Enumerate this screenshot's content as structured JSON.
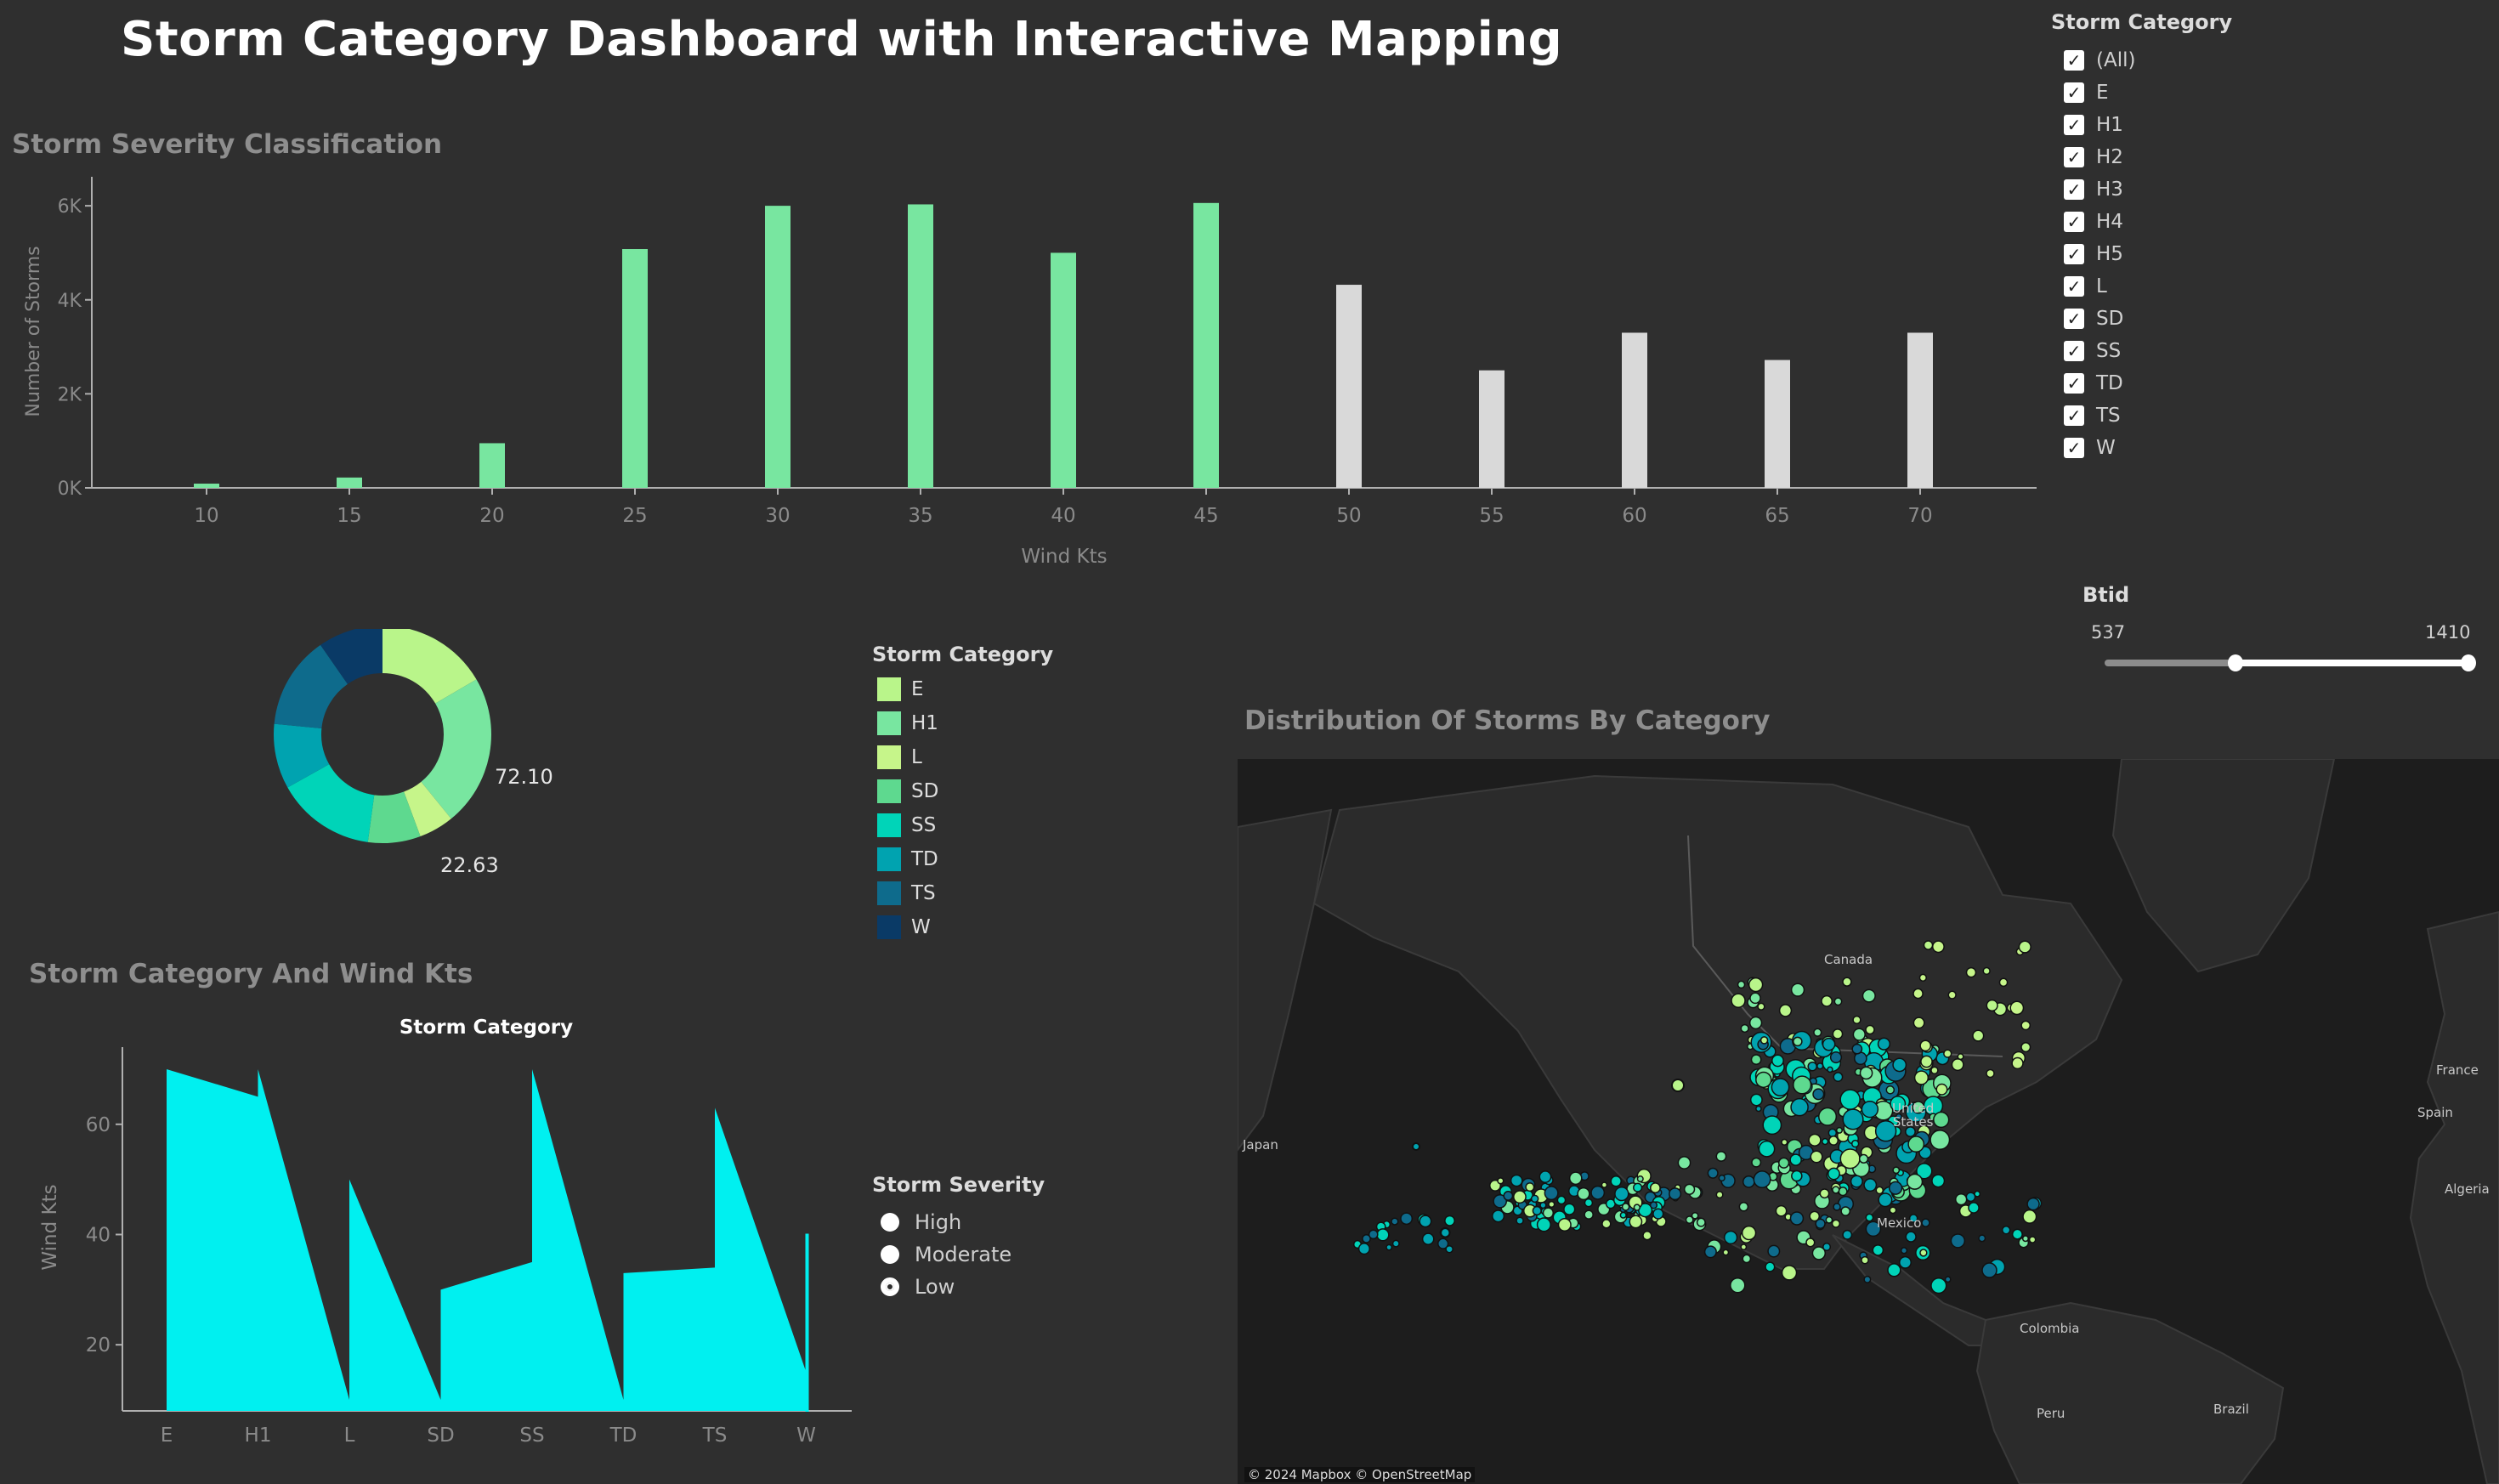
{
  "dashboard": {
    "title": "Storm Category Dashboard with Interactive Mapping"
  },
  "colors": {
    "background": "#2f2f2f",
    "bar_highlight": "#78e6a0",
    "bar_muted": "#d9d9d9",
    "area_fill": "#00f0f0",
    "map_bg": "#1d1d1d",
    "map_land": "#2b2b2b"
  },
  "severity_chart": {
    "section_title": "Storm Severity Classification",
    "chart_data": {
      "type": "bar",
      "categories": [
        "10",
        "15",
        "20",
        "25",
        "30",
        "35",
        "40",
        "45",
        "50",
        "55",
        "60",
        "65",
        "70"
      ],
      "values": [
        90,
        220,
        950,
        5080,
        6000,
        6030,
        5000,
        6060,
        4320,
        2500,
        3300,
        2720,
        3300
      ],
      "highlighted": [
        true,
        true,
        true,
        true,
        true,
        true,
        true,
        true,
        false,
        false,
        false,
        false,
        false
      ],
      "xlabel": "Wind Kts",
      "ylabel": "Number of Storms",
      "ylim": [
        0,
        6400
      ],
      "yticks": [
        0,
        2000,
        4000,
        6000
      ],
      "ytick_labels": [
        "0K",
        "2K",
        "4K",
        "6K"
      ]
    }
  },
  "filters": {
    "storm_category": {
      "title": "Storm Category",
      "items": [
        {
          "label": "(All)",
          "checked": true
        },
        {
          "label": "E",
          "checked": true
        },
        {
          "label": "H1",
          "checked": true
        },
        {
          "label": "H2",
          "checked": true
        },
        {
          "label": "H3",
          "checked": true
        },
        {
          "label": "H4",
          "checked": true
        },
        {
          "label": "H5",
          "checked": true
        },
        {
          "label": "L",
          "checked": true
        },
        {
          "label": "SD",
          "checked": true
        },
        {
          "label": "SS",
          "checked": true
        },
        {
          "label": "TD",
          "checked": true
        },
        {
          "label": "TS",
          "checked": true
        },
        {
          "label": "W",
          "checked": true
        }
      ]
    },
    "btid": {
      "title": "Btid",
      "min_label": "537",
      "max_label": "1410",
      "range_start": 0.36,
      "range_end": 1.0
    }
  },
  "donut": {
    "chart_data": {
      "type": "pie",
      "slices": [
        {
          "label": "E",
          "value": 72.1,
          "color": "#b9f58a"
        },
        {
          "label": "H1",
          "value": 98,
          "color": "#78e6a0"
        },
        {
          "label": "L",
          "value": 22.63,
          "color": "#c6f58a"
        },
        {
          "label": "SD",
          "value": 34,
          "color": "#5ed98f"
        },
        {
          "label": "SS",
          "value": 64,
          "color": "#00d4b8"
        },
        {
          "label": "TD",
          "value": 42,
          "color": "#00a3b0"
        },
        {
          "label": "TS",
          "value": 60,
          "color": "#0e6b8c"
        },
        {
          "label": "W",
          "value": 42,
          "color": "#0a3a66"
        }
      ],
      "value_labels": [
        "72.10",
        "22.63"
      ]
    },
    "legend": {
      "title": "Storm Category",
      "items": [
        {
          "label": "E",
          "color": "#b9f58a"
        },
        {
          "label": "H1",
          "color": "#78e6a0"
        },
        {
          "label": "L",
          "color": "#c6f58a"
        },
        {
          "label": "SD",
          "color": "#5ed98f"
        },
        {
          "label": "SS",
          "color": "#00d4b8"
        },
        {
          "label": "TD",
          "color": "#00a3b0"
        },
        {
          "label": "TS",
          "color": "#0e6b8c"
        },
        {
          "label": "W",
          "color": "#0a3a66"
        }
      ]
    }
  },
  "wind_chart": {
    "section_title": "Storm Category And Wind Kts",
    "chart_data": {
      "type": "area",
      "title": "Storm Category",
      "ylabel": "Wind Kts",
      "categories": [
        "E",
        "H1",
        "L",
        "SD",
        "SS",
        "TD",
        "TS",
        "W"
      ],
      "segments": [
        {
          "category": "E",
          "start": 70,
          "end": 65
        },
        {
          "category": "H1",
          "start": 70,
          "end": 10
        },
        {
          "category": "L",
          "start": 50,
          "end": 10
        },
        {
          "category": "SD",
          "start": 30,
          "end": 35
        },
        {
          "category": "SS",
          "start": 70,
          "end": 10
        },
        {
          "category": "TD",
          "start": 33,
          "end": 34
        },
        {
          "category": "TS",
          "start": 63,
          "end": 15
        },
        {
          "category": "W",
          "start": 40,
          "end": 40
        }
      ],
      "ylim": [
        8,
        74
      ],
      "yticks": [
        20,
        40,
        60
      ]
    }
  },
  "severity_filter": {
    "title": "Storm Severity",
    "options": [
      {
        "label": "High",
        "selected": false
      },
      {
        "label": "Moderate",
        "selected": false
      },
      {
        "label": "Low",
        "selected": true
      }
    ]
  },
  "map": {
    "section_title": "Distribution Of Storms By Category",
    "credit": "© 2024 Mapbox © OpenStreetMap",
    "place_labels": {
      "canada": "Canada",
      "united_states": "United\nStates",
      "mexico": "Mexico",
      "japan": "Japan",
      "colombia": "Colombia",
      "brazil": "Brazil",
      "peru": "Peru",
      "france": "France",
      "spain": "Spain",
      "algeria": "Algeria"
    }
  }
}
